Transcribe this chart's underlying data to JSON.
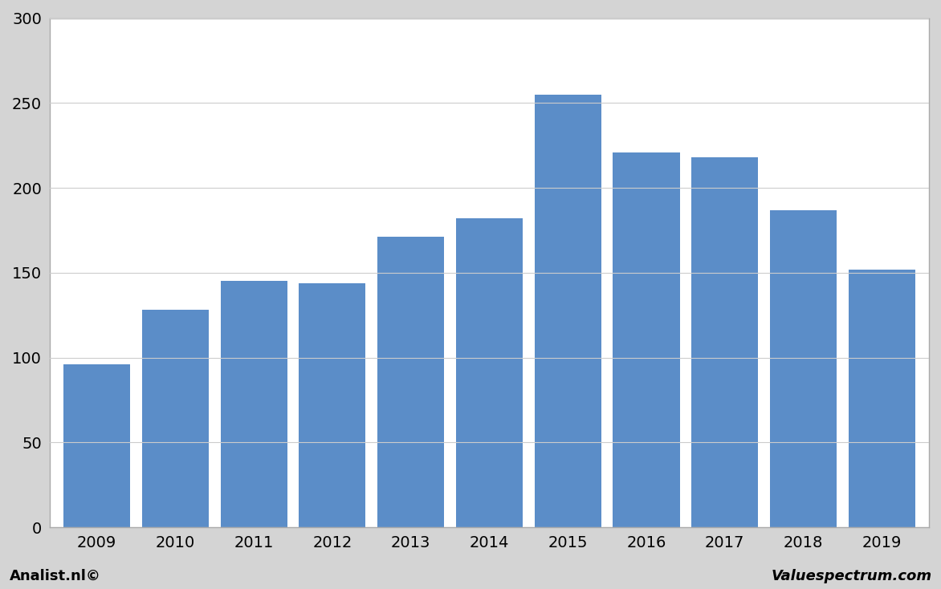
{
  "categories": [
    "2009",
    "2010",
    "2011",
    "2012",
    "2013",
    "2014",
    "2015",
    "2016",
    "2017",
    "2018",
    "2019"
  ],
  "values": [
    96,
    128,
    145,
    144,
    171,
    182,
    255,
    221,
    218,
    187,
    152
  ],
  "bar_color": "#5b8dc8",
  "ylim": [
    0,
    300
  ],
  "yticks": [
    0,
    50,
    100,
    150,
    200,
    250,
    300
  ],
  "background_color": "#d4d4d4",
  "plot_bg_color": "#ffffff",
  "grid_color": "#cccccc",
  "footer_left": "Analist.nl©",
  "footer_right": "Valuespectrum.com",
  "footer_fontsize": 13,
  "tick_fontsize": 14,
  "border_color": "#aaaaaa",
  "bar_width": 0.85
}
